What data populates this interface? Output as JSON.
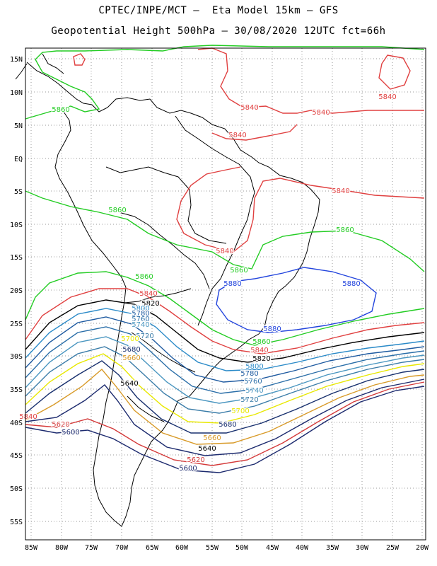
{
  "title_line1": "CPTEC/INPE/MCT –  Eta Model 15km – GFS",
  "title_line2": "Geopotential Height 500hPa – 30/08/2020 12UTC fct=66h",
  "lat_labels": [
    "15N",
    "10N",
    "5N",
    "EQ",
    "5S",
    "10S",
    "15S",
    "20S",
    "25S",
    "30S",
    "35S",
    "40S",
    "45S",
    "50S",
    "55S"
  ],
  "lon_labels": [
    "85W",
    "80W",
    "75W",
    "70W",
    "65W",
    "60W",
    "55W",
    "50W",
    "45W",
    "40W",
    "35W",
    "30W",
    "25W",
    "20W"
  ],
  "colors": {
    "c5600": "#1c2a6e",
    "c5620": "#d43a3a",
    "c5660": "#d89a28",
    "c5700": "#e8e800",
    "c5680": "#18306e",
    "c5720": "#3a7ca8",
    "c5740": "#4a96c0",
    "c5760": "#2a6ea8",
    "c5780": "#1e5aa0",
    "c5800": "#2a8ac8",
    "c5820": "#000000",
    "c5840": "#e04040",
    "c5860": "#22cc22",
    "c5880": "#2244dd",
    "coast": "#000000",
    "grid": "#999999"
  },
  "contour_labels": [
    "5840",
    "5840",
    "5840",
    "5840",
    "5840",
    "5840",
    "5860",
    "5860",
    "5860",
    "5860",
    "5860",
    "5860",
    "5880",
    "5880",
    "5880",
    "5840",
    "5820",
    "5800",
    "5780",
    "5760",
    "5740",
    "5720",
    "5700",
    "5680",
    "5660",
    "5640",
    "5840",
    "5820",
    "5800",
    "5780",
    "5760",
    "5740",
    "5720",
    "5700",
    "5680",
    "5660",
    "5640",
    "5620",
    "5600",
    "5620",
    "5600",
    "5840"
  ]
}
